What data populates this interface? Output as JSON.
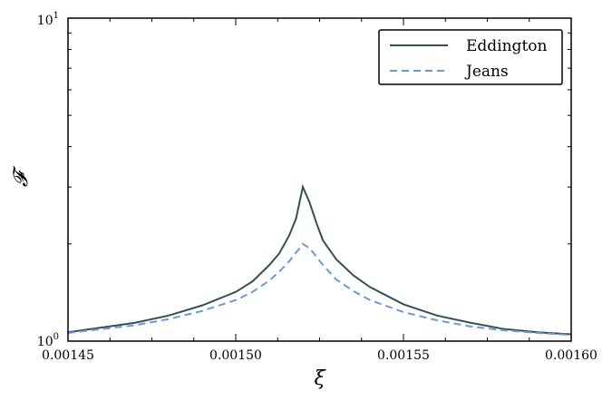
{
  "chart_data": {
    "type": "line",
    "xlabel": "ξ",
    "ylabel": "𝓕",
    "xlim": [
      0.00145,
      0.0016
    ],
    "ylim": [
      1,
      10
    ],
    "yscale": "log",
    "xticks": [
      "0.00145",
      "0.00150",
      "0.00155",
      "0.00160"
    ],
    "ytick_labels": {
      "bottom": {
        "base": "10",
        "exp": "0"
      },
      "top": {
        "base": "10",
        "exp": "1"
      }
    },
    "grid": false,
    "legend_position": "top-right",
    "series": [
      {
        "name": "Eddington",
        "color": "#36504f",
        "style": "solid",
        "x": [
          0.00145,
          0.00147,
          0.00148,
          0.00149,
          0.0015,
          0.001505,
          0.00151,
          0.001513,
          0.001516,
          0.001518,
          0.00152,
          0.001522,
          0.001524,
          0.001526,
          0.00153,
          0.001535,
          0.00154,
          0.00155,
          0.00156,
          0.00157,
          0.00158,
          0.00159,
          0.0016
        ],
        "y": [
          1.065,
          1.14,
          1.2,
          1.29,
          1.42,
          1.53,
          1.72,
          1.87,
          2.13,
          2.4,
          3.0,
          2.69,
          2.33,
          2.05,
          1.79,
          1.6,
          1.47,
          1.3,
          1.2,
          1.14,
          1.09,
          1.065,
          1.05
        ]
      },
      {
        "name": "Jeans",
        "color": "#6a98dc",
        "style": "dashed",
        "x": [
          0.00145,
          0.00147,
          0.00148,
          0.00149,
          0.0015,
          0.001505,
          0.00151,
          0.001513,
          0.001516,
          0.001518,
          0.00152,
          0.001522,
          0.001524,
          0.001526,
          0.00153,
          0.001535,
          0.00154,
          0.00155,
          0.00156,
          0.00157,
          0.00158,
          0.00159,
          0.0016
        ],
        "y": [
          1.06,
          1.12,
          1.17,
          1.24,
          1.34,
          1.42,
          1.54,
          1.64,
          1.77,
          1.88,
          2.0,
          1.94,
          1.83,
          1.72,
          1.55,
          1.43,
          1.34,
          1.23,
          1.16,
          1.11,
          1.08,
          1.06,
          1.045
        ]
      }
    ]
  }
}
